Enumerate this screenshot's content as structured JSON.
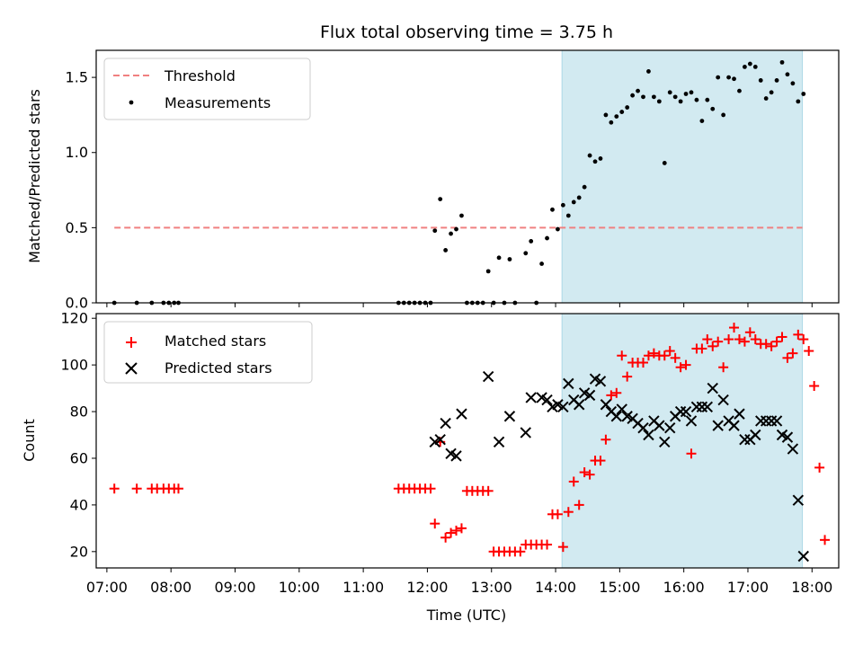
{
  "title": "Flux total observing time = 3.75 h",
  "xlabel": "Time (UTC)",
  "x_ticks": [
    "07:00",
    "08:00",
    "09:00",
    "10:00",
    "11:00",
    "12:00",
    "13:00",
    "14:00",
    "15:00",
    "16:00",
    "17:00",
    "18:00"
  ],
  "colors": {
    "threshold": "#f08080",
    "measurement": "#000000",
    "matched": "#ff0000",
    "predicted": "#000000",
    "span": "#add8e6"
  },
  "chart_data": [
    {
      "type": "scatter",
      "name": "top",
      "ylabel": "Matched/Predicted stars",
      "xlim": [
        "06:50",
        "18:25"
      ],
      "ylim": [
        0,
        1.68
      ],
      "yticks": [
        0.0,
        0.5,
        1.0,
        1.5
      ],
      "ytick_labels": [
        "0.0",
        "0.5",
        "1.0",
        "1.5"
      ],
      "shaded_span": [
        "14:06",
        "17:51"
      ],
      "legend": {
        "position": "top-left",
        "entries": [
          "Threshold",
          "Measurements"
        ]
      },
      "threshold": {
        "name": "Threshold",
        "y": 0.5,
        "x": [
          "07:07",
          "17:51"
        ]
      },
      "series": [
        {
          "name": "Measurements",
          "points": [
            [
              "07:07",
              0.0
            ],
            [
              "07:28",
              0.0
            ],
            [
              "07:42",
              0.0
            ],
            [
              "07:53",
              0.0
            ],
            [
              "07:58",
              0.0
            ],
            [
              "08:03",
              0.0
            ],
            [
              "08:07",
              0.0
            ],
            [
              "11:33",
              0.0
            ],
            [
              "11:38",
              0.0
            ],
            [
              "11:43",
              0.0
            ],
            [
              "11:48",
              0.0
            ],
            [
              "11:53",
              0.0
            ],
            [
              "11:58",
              0.0
            ],
            [
              "12:03",
              0.0
            ],
            [
              "12:07",
              0.48
            ],
            [
              "12:12",
              0.69
            ],
            [
              "12:17",
              0.35
            ],
            [
              "12:22",
              0.46
            ],
            [
              "12:27",
              0.49
            ],
            [
              "12:32",
              0.58
            ],
            [
              "12:37",
              0.0
            ],
            [
              "12:42",
              0.0
            ],
            [
              "12:47",
              0.0
            ],
            [
              "12:52",
              0.0
            ],
            [
              "12:57",
              0.21
            ],
            [
              "13:02",
              0.0
            ],
            [
              "13:07",
              0.3
            ],
            [
              "13:12",
              0.0
            ],
            [
              "13:17",
              0.29
            ],
            [
              "13:22",
              0.0
            ],
            [
              "13:32",
              0.33
            ],
            [
              "13:37",
              0.41
            ],
            [
              "13:42",
              0.0
            ],
            [
              "13:47",
              0.26
            ],
            [
              "13:52",
              0.43
            ],
            [
              "13:57",
              0.62
            ],
            [
              "14:02",
              0.49
            ],
            [
              "14:07",
              0.65
            ],
            [
              "14:12",
              0.58
            ],
            [
              "14:17",
              0.67
            ],
            [
              "14:22",
              0.7
            ],
            [
              "14:27",
              0.77
            ],
            [
              "14:32",
              0.98
            ],
            [
              "14:37",
              0.94
            ],
            [
              "14:42",
              0.96
            ],
            [
              "14:47",
              1.25
            ],
            [
              "14:52",
              1.2
            ],
            [
              "14:57",
              1.24
            ],
            [
              "15:02",
              1.27
            ],
            [
              "15:07",
              1.3
            ],
            [
              "15:12",
              1.38
            ],
            [
              "15:17",
              1.41
            ],
            [
              "15:22",
              1.37
            ],
            [
              "15:27",
              1.54
            ],
            [
              "15:32",
              1.37
            ],
            [
              "15:37",
              1.34
            ],
            [
              "15:42",
              0.93
            ],
            [
              "15:47",
              1.4
            ],
            [
              "15:52",
              1.37
            ],
            [
              "15:57",
              1.34
            ],
            [
              "16:02",
              1.39
            ],
            [
              "16:07",
              1.4
            ],
            [
              "16:12",
              1.35
            ],
            [
              "16:17",
              1.21
            ],
            [
              "16:22",
              1.35
            ],
            [
              "16:27",
              1.29
            ],
            [
              "16:32",
              1.5
            ],
            [
              "16:37",
              1.25
            ],
            [
              "16:42",
              1.5
            ],
            [
              "16:47",
              1.49
            ],
            [
              "16:52",
              1.41
            ],
            [
              "16:57",
              1.57
            ],
            [
              "17:02",
              1.59
            ],
            [
              "17:07",
              1.57
            ],
            [
              "17:12",
              1.48
            ],
            [
              "17:17",
              1.36
            ],
            [
              "17:22",
              1.4
            ],
            [
              "17:27",
              1.48
            ],
            [
              "17:32",
              1.6
            ],
            [
              "17:37",
              1.52
            ],
            [
              "17:42",
              1.46
            ],
            [
              "17:47",
              1.34
            ],
            [
              "17:52",
              1.39
            ]
          ]
        }
      ]
    },
    {
      "type": "scatter",
      "name": "bottom",
      "ylabel": "Count",
      "xlim": [
        "06:50",
        "18:25"
      ],
      "ylim": [
        13,
        122
      ],
      "yticks": [
        20,
        40,
        60,
        80,
        100,
        120
      ],
      "ytick_labels": [
        "20",
        "40",
        "60",
        "80",
        "100",
        "120"
      ],
      "shaded_span": [
        "14:06",
        "17:51"
      ],
      "legend": {
        "position": "top-left",
        "entries": [
          "Matched stars",
          "Predicted stars"
        ]
      },
      "series": [
        {
          "name": "Matched stars",
          "marker": "plus",
          "points": [
            [
              "07:07",
              47
            ],
            [
              "07:28",
              47
            ],
            [
              "07:42",
              47
            ],
            [
              "07:47",
              47
            ],
            [
              "07:53",
              47
            ],
            [
              "07:58",
              47
            ],
            [
              "08:03",
              47
            ],
            [
              "08:07",
              47
            ],
            [
              "11:33",
              47
            ],
            [
              "11:38",
              47
            ],
            [
              "11:43",
              47
            ],
            [
              "11:48",
              47
            ],
            [
              "11:53",
              47
            ],
            [
              "11:58",
              47
            ],
            [
              "12:03",
              47
            ],
            [
              "12:07",
              32
            ],
            [
              "12:12",
              67
            ],
            [
              "12:17",
              26
            ],
            [
              "12:22",
              28
            ],
            [
              "12:27",
              29
            ],
            [
              "12:32",
              30
            ],
            [
              "12:37",
              46
            ],
            [
              "12:42",
              46
            ],
            [
              "12:47",
              46
            ],
            [
              "12:52",
              46
            ],
            [
              "12:57",
              46
            ],
            [
              "13:02",
              20
            ],
            [
              "13:07",
              20
            ],
            [
              "13:12",
              20
            ],
            [
              "13:17",
              20
            ],
            [
              "13:22",
              20
            ],
            [
              "13:27",
              20
            ],
            [
              "13:32",
              23
            ],
            [
              "13:37",
              23
            ],
            [
              "13:42",
              23
            ],
            [
              "13:47",
              23
            ],
            [
              "13:52",
              23
            ],
            [
              "13:57",
              36
            ],
            [
              "14:02",
              36
            ],
            [
              "14:07",
              22
            ],
            [
              "14:12",
              37
            ],
            [
              "14:17",
              50
            ],
            [
              "14:22",
              40
            ],
            [
              "14:27",
              54
            ],
            [
              "14:32",
              53
            ],
            [
              "14:37",
              59
            ],
            [
              "14:42",
              59
            ],
            [
              "14:47",
              68
            ],
            [
              "14:52",
              87
            ],
            [
              "14:57",
              88
            ],
            [
              "15:02",
              104
            ],
            [
              "15:07",
              95
            ],
            [
              "15:12",
              101
            ],
            [
              "15:17",
              101
            ],
            [
              "15:22",
              101
            ],
            [
              "15:27",
              104
            ],
            [
              "15:32",
              105
            ],
            [
              "15:37",
              104
            ],
            [
              "15:42",
              104
            ],
            [
              "15:47",
              106
            ],
            [
              "15:52",
              103
            ],
            [
              "15:57",
              99
            ],
            [
              "16:02",
              100
            ],
            [
              "16:07",
              62
            ],
            [
              "16:12",
              107
            ],
            [
              "16:17",
              107
            ],
            [
              "16:22",
              111
            ],
            [
              "16:27",
              108
            ],
            [
              "16:32",
              110
            ],
            [
              "16:37",
              99
            ],
            [
              "16:42",
              111
            ],
            [
              "16:47",
              116
            ],
            [
              "16:52",
              111
            ],
            [
              "16:57",
              110
            ],
            [
              "17:02",
              114
            ],
            [
              "17:07",
              111
            ],
            [
              "17:12",
              109
            ],
            [
              "17:17",
              109
            ],
            [
              "17:22",
              108
            ],
            [
              "17:27",
              110
            ],
            [
              "17:32",
              112
            ],
            [
              "17:37",
              103
            ],
            [
              "17:42",
              105
            ],
            [
              "17:47",
              113
            ],
            [
              "17:52",
              111
            ],
            [
              "17:57",
              106
            ],
            [
              "18:02",
              91
            ],
            [
              "18:07",
              56
            ],
            [
              "18:12",
              25
            ]
          ]
        },
        {
          "name": "Predicted stars",
          "marker": "x",
          "points": [
            [
              "12:07",
              67
            ],
            [
              "12:12",
              68
            ],
            [
              "12:17",
              75
            ],
            [
              "12:22",
              62
            ],
            [
              "12:27",
              61
            ],
            [
              "12:32",
              79
            ],
            [
              "12:57",
              95
            ],
            [
              "13:07",
              67
            ],
            [
              "13:17",
              78
            ],
            [
              "13:32",
              71
            ],
            [
              "13:37",
              86
            ],
            [
              "13:47",
              86
            ],
            [
              "13:52",
              85
            ],
            [
              "13:57",
              82
            ],
            [
              "14:02",
              83
            ],
            [
              "14:07",
              82
            ],
            [
              "14:12",
              92
            ],
            [
              "14:17",
              85
            ],
            [
              "14:22",
              83
            ],
            [
              "14:27",
              88
            ],
            [
              "14:32",
              87
            ],
            [
              "14:37",
              94
            ],
            [
              "14:42",
              93
            ],
            [
              "14:47",
              83
            ],
            [
              "14:52",
              80
            ],
            [
              "14:57",
              78
            ],
            [
              "15:02",
              81
            ],
            [
              "15:07",
              78
            ],
            [
              "15:12",
              77
            ],
            [
              "15:17",
              75
            ],
            [
              "15:22",
              73
            ],
            [
              "15:27",
              70
            ],
            [
              "15:32",
              76
            ],
            [
              "15:37",
              74
            ],
            [
              "15:42",
              67
            ],
            [
              "15:47",
              73
            ],
            [
              "15:52",
              78
            ],
            [
              "15:57",
              80
            ],
            [
              "16:02",
              80
            ],
            [
              "16:07",
              76
            ],
            [
              "16:12",
              82
            ],
            [
              "16:17",
              82
            ],
            [
              "16:22",
              82
            ],
            [
              "16:27",
              90
            ],
            [
              "16:32",
              74
            ],
            [
              "16:37",
              85
            ],
            [
              "16:42",
              76
            ],
            [
              "16:47",
              74
            ],
            [
              "16:52",
              79
            ],
            [
              "16:57",
              68
            ],
            [
              "17:02",
              68
            ],
            [
              "17:07",
              70
            ],
            [
              "17:12",
              76
            ],
            [
              "17:17",
              76
            ],
            [
              "17:22",
              76
            ],
            [
              "17:27",
              76
            ],
            [
              "17:32",
              70
            ],
            [
              "17:37",
              69
            ],
            [
              "17:42",
              64
            ],
            [
              "17:47",
              42
            ],
            [
              "17:52",
              18
            ]
          ]
        }
      ]
    }
  ]
}
